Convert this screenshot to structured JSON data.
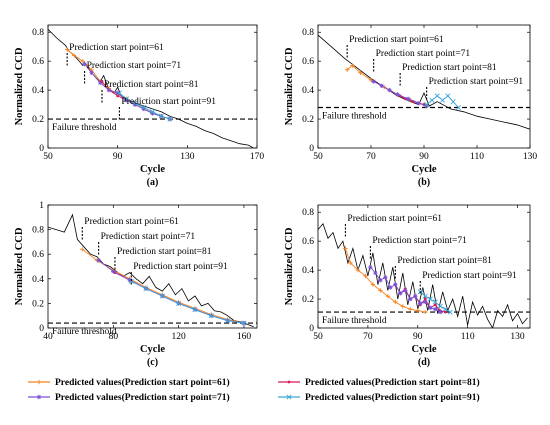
{
  "legend": [
    {
      "label": "Predicted values(Prediction start point=61)",
      "color": "#f5821f",
      "marker": "plus"
    },
    {
      "label": "Predicted values(Prediction start point=81)",
      "color": "#d6195a",
      "marker": "dot"
    },
    {
      "label": "Predicted values(Prediction start point=71)",
      "color": "#7b4fd6",
      "marker": "star"
    },
    {
      "label": "Predicted values(Prediction start point=91)",
      "color": "#3aa6d8",
      "marker": "x"
    }
  ],
  "colors": {
    "actual": "#000000",
    "threshold": "#000000"
  },
  "chart_data": [
    {
      "type": "line",
      "tag": "(a)",
      "xlabel": "Cycle",
      "ylabel": "Normalized CCD",
      "xlim": [
        50,
        170
      ],
      "ylim": [
        0,
        0.85
      ],
      "xticks": [
        50,
        90,
        130,
        170
      ],
      "yticks": [
        0,
        0.2,
        0.4,
        0.6,
        0.8
      ],
      "threshold": 0.2,
      "threshold_label": "Failure threshold",
      "annotations": [
        {
          "text": "Prediction start point=61",
          "x": 61
        },
        {
          "text": "Prediction start point=71",
          "x": 71
        },
        {
          "text": "Prediction start point=81",
          "x": 81
        },
        {
          "text": "Prediction start point=91",
          "x": 91
        }
      ],
      "actual": {
        "x": [
          50,
          55,
          60,
          62,
          65,
          68,
          70,
          72,
          75,
          78,
          80,
          82,
          85,
          88,
          90,
          92,
          95,
          100,
          105,
          110,
          115,
          120,
          125,
          130,
          135,
          140,
          145,
          150,
          155,
          160,
          165,
          168
        ],
        "y": [
          0.82,
          0.76,
          0.71,
          0.67,
          0.64,
          0.6,
          0.57,
          0.58,
          0.52,
          0.48,
          0.46,
          0.5,
          0.4,
          0.38,
          0.42,
          0.36,
          0.34,
          0.31,
          0.29,
          0.27,
          0.25,
          0.22,
          0.2,
          0.17,
          0.15,
          0.12,
          0.1,
          0.07,
          0.05,
          0.03,
          0.02,
          0.0
        ]
      },
      "predicted": [
        {
          "x": [
            61,
            65,
            70,
            75,
            80,
            85,
            90,
            95,
            100,
            105,
            110,
            115,
            120
          ],
          "y": [
            0.68,
            0.64,
            0.6,
            0.54,
            0.46,
            0.41,
            0.37,
            0.34,
            0.3,
            0.27,
            0.24,
            0.22,
            0.2
          ]
        },
        {
          "x": [
            81,
            85,
            90,
            95,
            100,
            105,
            110,
            115,
            120
          ],
          "y": [
            0.46,
            0.4,
            0.36,
            0.33,
            0.3,
            0.27,
            0.24,
            0.22,
            0.2
          ]
        },
        {
          "x": [
            71,
            75,
            80,
            85,
            90,
            95,
            100,
            105,
            110,
            115,
            120
          ],
          "y": [
            0.58,
            0.52,
            0.45,
            0.4,
            0.38,
            0.33,
            0.3,
            0.27,
            0.24,
            0.22,
            0.2
          ]
        },
        {
          "x": [
            91,
            95,
            100,
            105,
            110,
            115,
            120
          ],
          "y": [
            0.38,
            0.34,
            0.31,
            0.28,
            0.25,
            0.22,
            0.2
          ]
        }
      ]
    },
    {
      "type": "line",
      "tag": "(b)",
      "xlabel": "Cycle",
      "ylabel": "Normalized CCD",
      "xlim": [
        50,
        130
      ],
      "ylim": [
        0,
        0.85
      ],
      "xticks": [
        50,
        70,
        90,
        110,
        130
      ],
      "yticks": [
        0,
        0.2,
        0.4,
        0.6,
        0.8
      ],
      "threshold": 0.28,
      "threshold_label": "Failure threshold",
      "annotations": [
        {
          "text": "Prediction start point=61",
          "x": 61
        },
        {
          "text": "Prediction start point=71",
          "x": 71
        },
        {
          "text": "Prediction start point=81",
          "x": 81
        },
        {
          "text": "Prediction start point=91",
          "x": 91
        }
      ],
      "actual": {
        "x": [
          50,
          55,
          60,
          65,
          70,
          75,
          80,
          85,
          88,
          90,
          92,
          95,
          100,
          105,
          110,
          115,
          120,
          125,
          130
        ],
        "y": [
          0.78,
          0.7,
          0.62,
          0.55,
          0.48,
          0.42,
          0.36,
          0.32,
          0.3,
          0.38,
          0.29,
          0.32,
          0.27,
          0.25,
          0.22,
          0.2,
          0.18,
          0.16,
          0.13
        ]
      },
      "predicted": [
        {
          "x": [
            61,
            63,
            66,
            70,
            75,
            80,
            85,
            90
          ],
          "y": [
            0.54,
            0.57,
            0.52,
            0.47,
            0.42,
            0.37,
            0.33,
            0.3
          ]
        },
        {
          "x": [
            81,
            83,
            86,
            90
          ],
          "y": [
            0.36,
            0.34,
            0.32,
            0.3
          ]
        },
        {
          "x": [
            71,
            74,
            77,
            80,
            84,
            88,
            91
          ],
          "y": [
            0.46,
            0.43,
            0.4,
            0.37,
            0.34,
            0.31,
            0.29
          ]
        },
        {
          "x": [
            91,
            93,
            95,
            97,
            99,
            101,
            103
          ],
          "y": [
            0.3,
            0.33,
            0.36,
            0.33,
            0.36,
            0.32,
            0.28
          ]
        }
      ]
    },
    {
      "type": "line",
      "tag": "(c)",
      "xlabel": "Cycle",
      "ylabel": "Normalized CCD",
      "xlim": [
        40,
        168
      ],
      "ylim": [
        0,
        1.0
      ],
      "xticks": [
        40,
        80,
        120,
        160
      ],
      "yticks": [
        0,
        0.2,
        0.4,
        0.6,
        0.8,
        1.0
      ],
      "threshold": 0.04,
      "threshold_label": "Failure threshold",
      "annotations": [
        {
          "text": "Prediction start point=61",
          "x": 61
        },
        {
          "text": "Prediction start point=71",
          "x": 71
        },
        {
          "text": "Prediction start point=81",
          "x": 81
        },
        {
          "text": "Prediction start point=91",
          "x": 91
        }
      ],
      "actual": {
        "x": [
          40,
          45,
          50,
          55,
          58,
          62,
          66,
          70,
          74,
          78,
          82,
          86,
          90,
          94,
          98,
          102,
          106,
          110,
          114,
          118,
          122,
          126,
          130,
          134,
          138,
          142,
          146,
          150,
          154,
          158,
          162,
          166
        ],
        "y": [
          0.82,
          0.8,
          0.78,
          0.92,
          0.72,
          0.66,
          0.6,
          0.58,
          0.52,
          0.5,
          0.46,
          0.42,
          0.45,
          0.4,
          0.36,
          0.42,
          0.33,
          0.3,
          0.36,
          0.27,
          0.32,
          0.22,
          0.26,
          0.18,
          0.2,
          0.14,
          0.13,
          0.1,
          0.06,
          0.05,
          0.03,
          0.01
        ]
      },
      "predicted": [
        {
          "x": [
            61,
            70,
            80,
            90,
            100,
            110,
            120,
            130,
            140,
            150,
            160
          ],
          "y": [
            0.64,
            0.55,
            0.47,
            0.4,
            0.33,
            0.27,
            0.21,
            0.16,
            0.11,
            0.07,
            0.04
          ]
        },
        {
          "x": [
            81,
            90,
            100,
            110,
            120,
            130,
            140,
            150,
            160
          ],
          "y": [
            0.45,
            0.39,
            0.32,
            0.26,
            0.2,
            0.15,
            0.1,
            0.06,
            0.04
          ]
        },
        {
          "x": [
            71,
            80,
            90,
            100,
            110,
            120,
            130,
            140,
            150,
            160
          ],
          "y": [
            0.55,
            0.46,
            0.39,
            0.32,
            0.26,
            0.2,
            0.15,
            0.1,
            0.06,
            0.04
          ]
        },
        {
          "x": [
            91,
            100,
            110,
            120,
            130,
            140,
            150,
            160
          ],
          "y": [
            0.38,
            0.32,
            0.26,
            0.2,
            0.15,
            0.1,
            0.06,
            0.04
          ]
        }
      ]
    },
    {
      "type": "line",
      "tag": "(d)",
      "xlabel": "Cycle",
      "ylabel": "Normalized CCD",
      "xlim": [
        50,
        135
      ],
      "ylim": [
        0,
        0.85
      ],
      "xticks": [
        50,
        70,
        90,
        110,
        130
      ],
      "yticks": [
        0,
        0.2,
        0.4,
        0.6,
        0.8
      ],
      "threshold": 0.11,
      "threshold_label": "Failure threshold",
      "annotations": [
        {
          "text": "Prediction start point=61",
          "x": 61
        },
        {
          "text": "Prediction start point=71",
          "x": 71
        },
        {
          "text": "Prediction start point=81",
          "x": 81
        },
        {
          "text": "Prediction start point=91",
          "x": 91
        }
      ],
      "actual": {
        "x": [
          50,
          52,
          54,
          56,
          58,
          60,
          62,
          64,
          66,
          68,
          70,
          72,
          74,
          76,
          78,
          80,
          82,
          84,
          86,
          88,
          90,
          92,
          94,
          96,
          98,
          100,
          102,
          104,
          106,
          108,
          110,
          112,
          114,
          116,
          118,
          120,
          122,
          124,
          126,
          128,
          130,
          132,
          134
        ],
        "y": [
          0.68,
          0.72,
          0.62,
          0.66,
          0.55,
          0.6,
          0.45,
          0.55,
          0.4,
          0.5,
          0.36,
          0.52,
          0.3,
          0.45,
          0.26,
          0.42,
          0.2,
          0.38,
          0.16,
          0.32,
          0.13,
          0.28,
          0.12,
          0.3,
          0.1,
          0.25,
          0.12,
          0.2,
          0.08,
          0.22,
          0.02,
          0.18,
          0.09,
          0.15,
          0.06,
          0.0,
          0.12,
          0.08,
          0.16,
          0.05,
          0.1,
          0.03,
          0.07
        ]
      },
      "predicted": [
        {
          "x": [
            61,
            63,
            66,
            69,
            72,
            75,
            78,
            81,
            84,
            87,
            90,
            93
          ],
          "y": [
            0.55,
            0.45,
            0.4,
            0.36,
            0.3,
            0.26,
            0.22,
            0.18,
            0.15,
            0.13,
            0.12,
            0.11
          ]
        },
        {
          "x": [
            81,
            83,
            85,
            87,
            89,
            91,
            93,
            95,
            97,
            99,
            101
          ],
          "y": [
            0.3,
            0.24,
            0.27,
            0.2,
            0.22,
            0.16,
            0.2,
            0.14,
            0.16,
            0.12,
            0.11
          ]
        },
        {
          "x": [
            71,
            73,
            75,
            77,
            79,
            81,
            83,
            85,
            87,
            89,
            91,
            93,
            95,
            97,
            99
          ],
          "y": [
            0.42,
            0.38,
            0.33,
            0.35,
            0.28,
            0.3,
            0.24,
            0.26,
            0.2,
            0.22,
            0.17,
            0.18,
            0.14,
            0.13,
            0.11
          ]
        },
        {
          "x": [
            91,
            93,
            95,
            97,
            99,
            101,
            103
          ],
          "y": [
            0.25,
            0.22,
            0.2,
            0.18,
            0.15,
            0.13,
            0.11
          ]
        }
      ]
    }
  ]
}
